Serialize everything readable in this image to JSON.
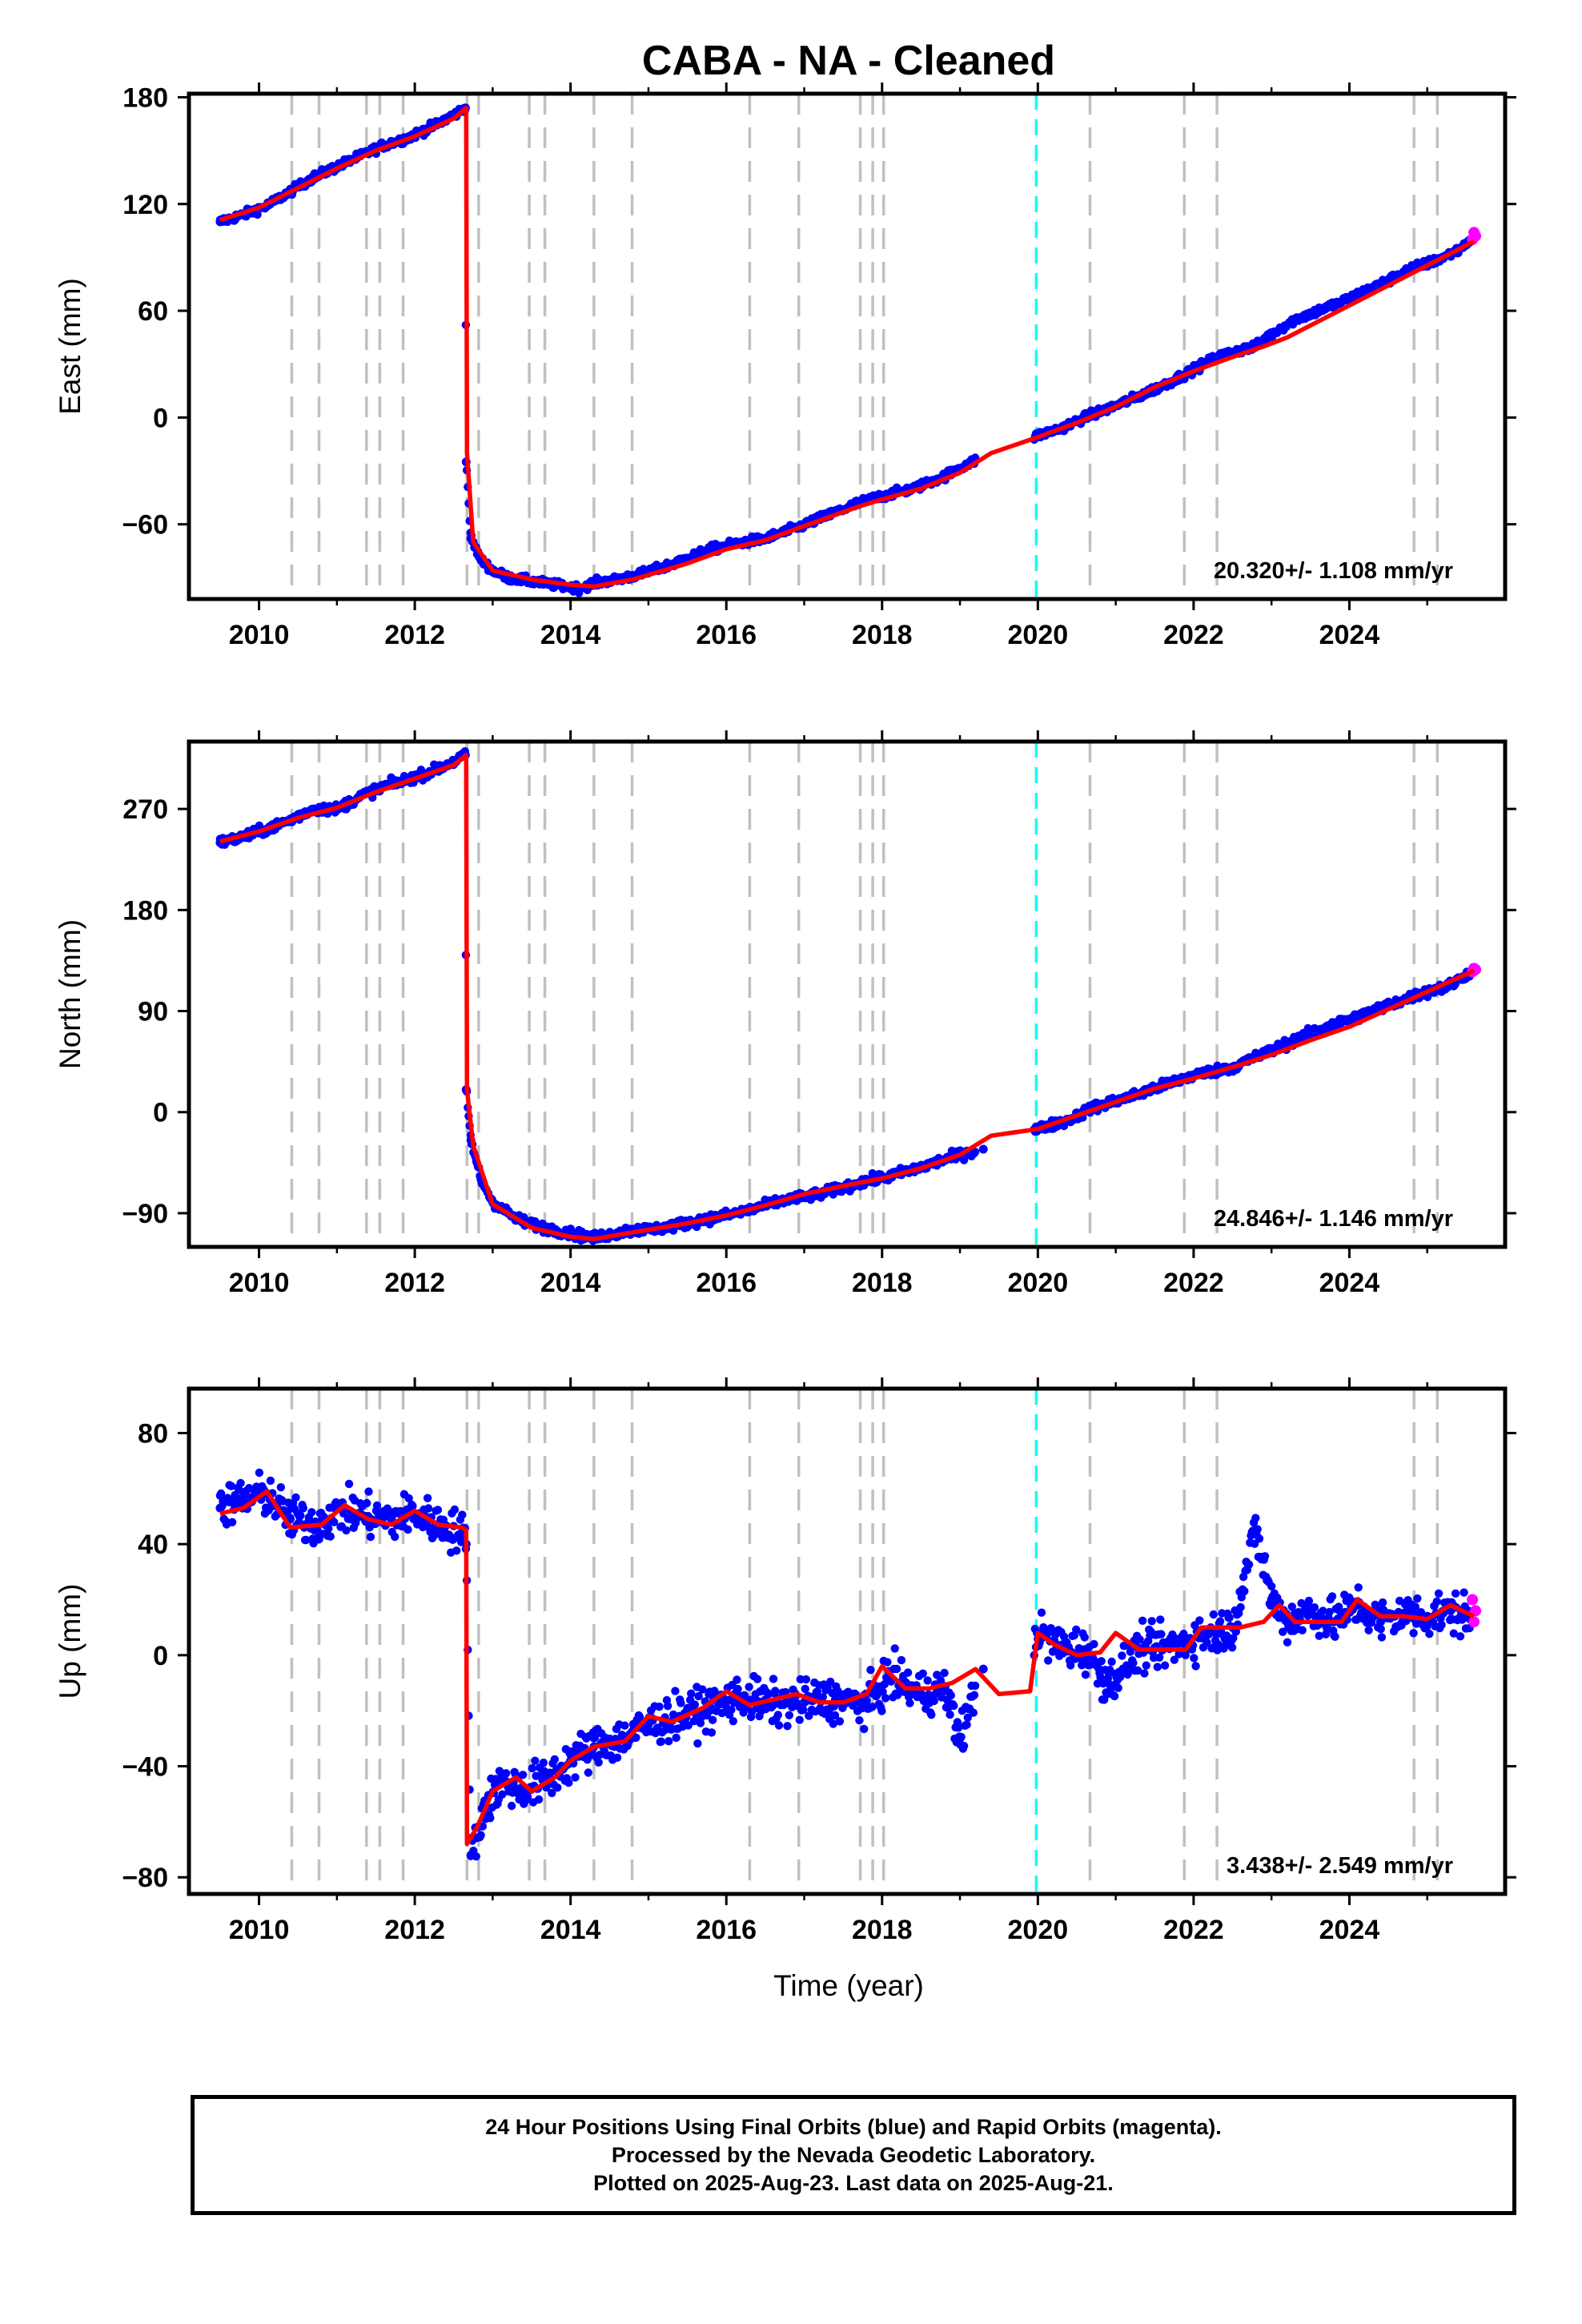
{
  "title": "CABA  - NA - Cleaned",
  "colors": {
    "final_orbits": "#0000ff",
    "rapid_orbits": "#ff00ff",
    "model_fit": "#ff0000",
    "equipment_change_line": "#c0c0c0",
    "special_event_line": "#00ffff"
  },
  "x_axis": {
    "label": "Time (year)",
    "range": [
      2009.1,
      2026.0
    ],
    "ticks": [
      2010,
      2012,
      2014,
      2016,
      2018,
      2020,
      2022,
      2024
    ],
    "tick_labels": [
      "2010",
      "2012",
      "2014",
      "2016",
      "2018",
      "2020",
      "2022",
      "2024"
    ]
  },
  "vertical_markers": {
    "gray_dashed_years": [
      2010.42,
      2010.77,
      2011.38,
      2011.55,
      2011.85,
      2012.67,
      2012.82,
      2013.47,
      2013.67,
      2014.3,
      2014.79,
      2016.3,
      2016.93,
      2017.72,
      2017.88,
      2018.02,
      2020.67,
      2021.88,
      2022.3,
      2024.83,
      2025.13
    ],
    "cyan_dashed_years": [
      2019.98
    ]
  },
  "panels": [
    {
      "ylabel": "East (mm)",
      "rate_text": "20.320+/- 1.108 mm/yr",
      "ylim": [
        -102,
        182
      ],
      "yticks": [
        180,
        120,
        60,
        0,
        -60
      ],
      "ytick_labels": [
        "180",
        "120",
        "60",
        "0",
        "−60"
      ]
    },
    {
      "ylabel": "North (mm)",
      "rate_text": "24.846+/- 1.146 mm/yr",
      "ylim": [
        -120,
        330
      ],
      "yticks": [
        270,
        180,
        90,
        0,
        -90
      ],
      "ytick_labels": [
        "270",
        "180",
        "90",
        "0",
        "−90"
      ]
    },
    {
      "ylabel": "Up (mm)",
      "rate_text": "3.438+/- 2.549 mm/yr",
      "ylim": [
        -86,
        96
      ],
      "yticks": [
        80,
        40,
        0,
        -40,
        -80
      ],
      "ytick_labels": [
        "80",
        "40",
        "0",
        "−40",
        "−80"
      ]
    }
  ],
  "chart_data": [
    {
      "type": "scatter",
      "component": "East",
      "ylabel": "East (mm)",
      "xlabel": "",
      "xlim": [
        2009.1,
        2026.0
      ],
      "ylim": [
        -102,
        182
      ],
      "series": [
        {
          "name": "Final Orbits (blue)",
          "x": [
            2009.5,
            2009.8,
            2010.1,
            2010.4,
            2010.7,
            2011.0,
            2011.3,
            2011.6,
            2011.9,
            2012.2,
            2012.5,
            2012.65,
            2012.66,
            2012.72,
            2012.85,
            2013.0,
            2013.2,
            2013.5,
            2013.8,
            2014.1,
            2014.3,
            2014.6,
            2014.9,
            2015.2,
            2015.5,
            2015.8,
            2016.1,
            2016.5,
            2016.9,
            2017.3,
            2017.7,
            2018.0,
            2018.4,
            2018.8,
            2019.1,
            2020.0,
            2020.3,
            2020.6,
            2020.9,
            2021.3,
            2021.7,
            2022.0,
            2022.3,
            2022.6,
            2022.8,
            2023.0,
            2023.3,
            2023.6,
            2023.9,
            2024.2,
            2024.5,
            2024.8,
            2025.1,
            2025.4,
            2025.55
          ],
          "y": [
            110,
            114,
            119,
            127,
            135,
            141,
            147,
            153,
            157,
            163,
            170,
            174,
            -25,
            -68,
            -80,
            -86,
            -90,
            -92,
            -94,
            -96,
            -93,
            -91,
            -88,
            -84,
            -79,
            -74,
            -71,
            -68,
            -62,
            -55,
            -48,
            -44,
            -40,
            -33,
            -26,
            -10,
            -6,
            0,
            5,
            12,
            20,
            27,
            34,
            38,
            40,
            47,
            55,
            60,
            65,
            71,
            77,
            84,
            88,
            94,
            100
          ]
        },
        {
          "name": "Rapid Orbits (magenta)",
          "x": [
            2025.58,
            2025.6,
            2025.62
          ],
          "y": [
            100,
            104,
            102
          ]
        },
        {
          "name": "Model fit",
          "x": [
            2009.5,
            2010.0,
            2010.5,
            2011.0,
            2011.5,
            2012.0,
            2012.5,
            2012.66,
            2012.67,
            2012.75,
            2013.0,
            2013.5,
            2014.0,
            2014.3,
            2014.8,
            2015.5,
            2016.0,
            2016.5,
            2017.0,
            2017.7,
            2018.0,
            2018.5,
            2019.0,
            2019.4,
            2019.8,
            2020.0,
            2020.5,
            2021.0,
            2021.5,
            2022.0,
            2022.5,
            2022.9,
            2023.2,
            2024.0,
            2024.8,
            2025.6
          ],
          "y": [
            111,
            118,
            129,
            140,
            150,
            158,
            168,
            174,
            -20,
            -70,
            -86,
            -91,
            -94,
            -95,
            -91,
            -82,
            -74,
            -69,
            -61,
            -50,
            -46,
            -40,
            -31,
            -20,
            -14,
            -11,
            -3,
            6,
            17,
            26,
            34,
            40,
            45,
            63,
            81,
            99
          ]
        }
      ],
      "annotations": [
        "20.320+/- 1.108 mm/yr"
      ]
    },
    {
      "type": "scatter",
      "component": "North",
      "ylabel": "North (mm)",
      "xlabel": "",
      "xlim": [
        2009.1,
        2026.0
      ],
      "ylim": [
        -120,
        330
      ],
      "series": [
        {
          "name": "Final Orbits (blue)",
          "x": [
            2009.5,
            2009.8,
            2010.1,
            2010.4,
            2010.7,
            2011.0,
            2011.3,
            2011.6,
            2011.9,
            2012.2,
            2012.5,
            2012.65,
            2012.66,
            2012.72,
            2012.85,
            2013.0,
            2013.3,
            2013.6,
            2014.0,
            2014.3,
            2014.7,
            2015.2,
            2015.7,
            2016.2,
            2016.7,
            2017.2,
            2017.7,
            2018.1,
            2018.5,
            2019.0,
            2019.3,
            2020.0,
            2020.4,
            2020.7,
            2021.2,
            2021.7,
            2022.0,
            2022.5,
            2022.9,
            2023.3,
            2023.7,
            2024.1,
            2024.5,
            2024.9,
            2025.3,
            2025.55
          ],
          "y": [
            240,
            245,
            252,
            260,
            270,
            270,
            281,
            290,
            296,
            303,
            312,
            318,
            20,
            -25,
            -60,
            -80,
            -95,
            -102,
            -108,
            -112,
            -106,
            -103,
            -96,
            -89,
            -79,
            -73,
            -63,
            -57,
            -49,
            -38,
            -33,
            -15,
            -7,
            4,
            14,
            26,
            33,
            40,
            52,
            64,
            76,
            85,
            95,
            105,
            113,
            125
          ]
        },
        {
          "name": "Rapid Orbits (magenta)",
          "x": [
            2025.58,
            2025.6,
            2025.62
          ],
          "y": [
            125,
            128,
            127
          ]
        },
        {
          "name": "Model fit",
          "x": [
            2009.5,
            2010.0,
            2010.5,
            2011.0,
            2011.5,
            2012.0,
            2012.5,
            2012.66,
            2012.67,
            2012.75,
            2013.0,
            2013.5,
            2014.0,
            2014.3,
            2014.8,
            2015.5,
            2016.0,
            2016.5,
            2017.0,
            2017.7,
            2018.0,
            2018.5,
            2019.0,
            2019.4,
            2019.8,
            2020.0,
            2020.5,
            2021.0,
            2021.5,
            2022.0,
            2022.5,
            2023.0,
            2023.5,
            2024.0,
            2024.8,
            2025.6
          ],
          "y": [
            241,
            250,
            262,
            271,
            285,
            297,
            309,
            318,
            20,
            -30,
            -82,
            -103,
            -111,
            -113,
            -107,
            -99,
            -92,
            -83,
            -73,
            -63,
            -59,
            -50,
            -38,
            -21,
            -17,
            -15,
            -3,
            9,
            21,
            30,
            40,
            51,
            64,
            76,
            101,
            126
          ]
        }
      ],
      "annotations": [
        "24.846+/- 1.146 mm/yr"
      ]
    },
    {
      "type": "scatter",
      "component": "Up",
      "ylabel": "Up (mm)",
      "xlabel": "Time (year)",
      "xlim": [
        2009.1,
        2026.0
      ],
      "ylim": [
        -86,
        96
      ],
      "series": [
        {
          "name": "Final Orbits (blue)",
          "x": [
            2009.5,
            2009.8,
            2010.1,
            2010.4,
            2010.7,
            2011.1,
            2011.4,
            2011.7,
            2012.0,
            2012.3,
            2012.6,
            2012.66,
            2012.72,
            2012.9,
            2013.1,
            2013.4,
            2013.7,
            2014.0,
            2014.3,
            2014.7,
            2015.0,
            2015.4,
            2015.8,
            2016.2,
            2016.6,
            2017.0,
            2017.4,
            2017.8,
            2018.1,
            2018.5,
            2018.8,
            2019.0,
            2019.3,
            2020.0,
            2020.3,
            2020.6,
            2020.9,
            2021.3,
            2021.7,
            2022.1,
            2022.5,
            2022.8,
            2023.0,
            2023.2,
            2023.5,
            2023.8,
            2024.1,
            2024.4,
            2024.7,
            2025.0,
            2025.3,
            2025.55
          ],
          "y": [
            53,
            56,
            58,
            49,
            47,
            52,
            50,
            49,
            51,
            47,
            44,
            40,
            -72,
            -55,
            -46,
            -48,
            -45,
            -38,
            -33,
            -30,
            -25,
            -22,
            -19,
            -15,
            -18,
            -17,
            -16,
            -18,
            -8,
            -14,
            -12,
            -30,
            -5,
            8,
            3,
            2,
            -10,
            2,
            3,
            7,
            10,
            45,
            20,
            12,
            16,
            12,
            18,
            12,
            15,
            14,
            16,
            13
          ]
        },
        {
          "name": "Rapid Orbits (magenta)",
          "x": [
            2025.58,
            2025.6,
            2025.62
          ],
          "y": [
            20,
            12,
            16
          ]
        },
        {
          "name": "Model fit",
          "x": [
            2009.5,
            2009.8,
            2010.1,
            2010.4,
            2010.8,
            2011.1,
            2011.4,
            2011.7,
            2012.0,
            2012.3,
            2012.6,
            2012.66,
            2012.67,
            2012.8,
            2013.0,
            2013.3,
            2013.5,
            2013.8,
            2014.0,
            2014.3,
            2014.7,
            2015.0,
            2015.3,
            2015.7,
            2016.0,
            2016.3,
            2016.6,
            2016.9,
            2017.2,
            2017.5,
            2017.8,
            2018.0,
            2018.3,
            2018.6,
            2018.9,
            2019.2,
            2019.5,
            2019.9,
            2020.0,
            2020.2,
            2020.5,
            2020.8,
            2021.0,
            2021.3,
            2021.6,
            2021.9,
            2022.1,
            2022.3,
            2022.6,
            2022.9,
            2023.1,
            2023.3,
            2023.6,
            2023.9,
            2024.1,
            2024.4,
            2024.7,
            2025.0,
            2025.3,
            2025.6
          ],
          "y": [
            51,
            53,
            59,
            46,
            47,
            54,
            49,
            47,
            52,
            47,
            46,
            45,
            -68,
            -62,
            -49,
            -44,
            -49,
            -44,
            -38,
            -33,
            -31,
            -22,
            -24,
            -19,
            -13,
            -18,
            -16,
            -14,
            -17,
            -17,
            -14,
            -4,
            -12,
            -12,
            -10,
            -5,
            -14,
            -13,
            8,
            4,
            0,
            1,
            8,
            2,
            2,
            2,
            10,
            10,
            10,
            12,
            18,
            12,
            12,
            12,
            20,
            14,
            14,
            13,
            18,
            14
          ]
        }
      ],
      "annotations": [
        "3.438+/- 2.549 mm/yr"
      ]
    }
  ],
  "caption": {
    "line1": "24 Hour Positions Using Final Orbits (blue) and Rapid Orbits (magenta).",
    "line2": "Processed by the Nevada Geodetic Laboratory.",
    "line3": "Plotted on 2025-Aug-23. Last data on 2025-Aug-21."
  }
}
